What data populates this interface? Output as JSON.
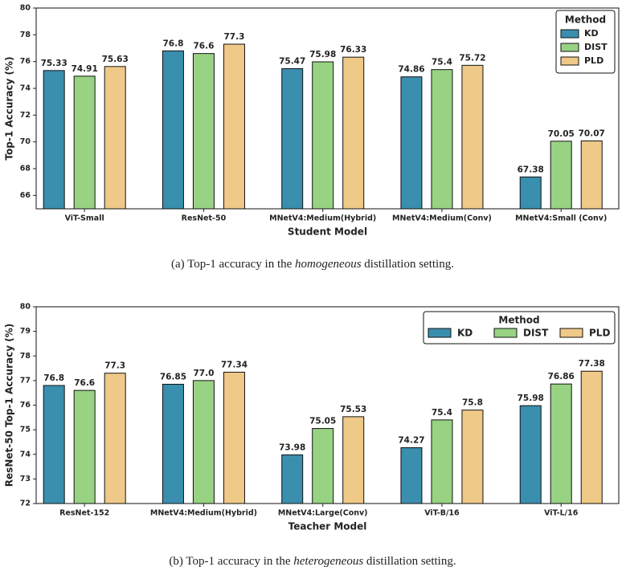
{
  "chart_data": [
    {
      "type": "bar",
      "x_label": "Student Model",
      "y_label": "Top-1 Accuracy (%)",
      "categories": [
        "ViT-Small",
        "ResNet-50",
        "MNetV4:Medium(Hybrid)",
        "MNetV4:Medium(Conv)",
        "MNetV4:Small (Conv)"
      ],
      "series": [
        {
          "name": "KD",
          "color": "#3a8eae",
          "values": [
            75.33,
            76.8,
            75.47,
            74.86,
            67.38
          ]
        },
        {
          "name": "DIST",
          "color": "#98d283",
          "values": [
            74.91,
            76.6,
            75.98,
            75.4,
            70.05
          ]
        },
        {
          "name": "PLD",
          "color": "#efc987",
          "values": [
            75.63,
            77.3,
            76.33,
            75.72,
            70.07
          ]
        }
      ],
      "ylim": [
        65,
        80
      ],
      "yticks": [
        66,
        68,
        70,
        72,
        74,
        76,
        78,
        80
      ],
      "legend_title": "Method",
      "legend_loc": "upper right",
      "legend_ncol": 1,
      "caption": {
        "before": "(a) Top-1 accuracy in the ",
        "em": "homogeneous",
        "after": " distillation setting."
      }
    },
    {
      "type": "bar",
      "x_label": "Teacher Model",
      "y_label": "ResNet-50 Top-1 Accuracy (%)",
      "categories": [
        "ResNet-152",
        "MNetV4:Medium(Hybrid)",
        "MNetV4:Large(Conv)",
        "ViT-B/16",
        "ViT-L/16"
      ],
      "series": [
        {
          "name": "KD",
          "color": "#3a8eae",
          "values": [
            76.8,
            76.85,
            73.98,
            74.27,
            75.98
          ]
        },
        {
          "name": "DIST",
          "color": "#98d283",
          "values": [
            76.6,
            77.0,
            75.05,
            75.4,
            76.86
          ],
          "value_labels": [
            "76.6",
            "77.0",
            "75.05",
            "75.4",
            "76.86"
          ]
        },
        {
          "name": "PLD",
          "color": "#efc987",
          "values": [
            77.3,
            77.34,
            75.53,
            75.8,
            77.38
          ]
        }
      ],
      "ylim": [
        72,
        80
      ],
      "yticks": [
        72,
        73,
        74,
        75,
        76,
        77,
        78,
        79,
        80
      ],
      "legend_title": "Method",
      "legend_loc": "upper right",
      "legend_ncol": 3,
      "caption": {
        "before": "(b) Top-1 accuracy in the ",
        "em": "heterogeneous",
        "after": " distillation setting."
      }
    }
  ]
}
